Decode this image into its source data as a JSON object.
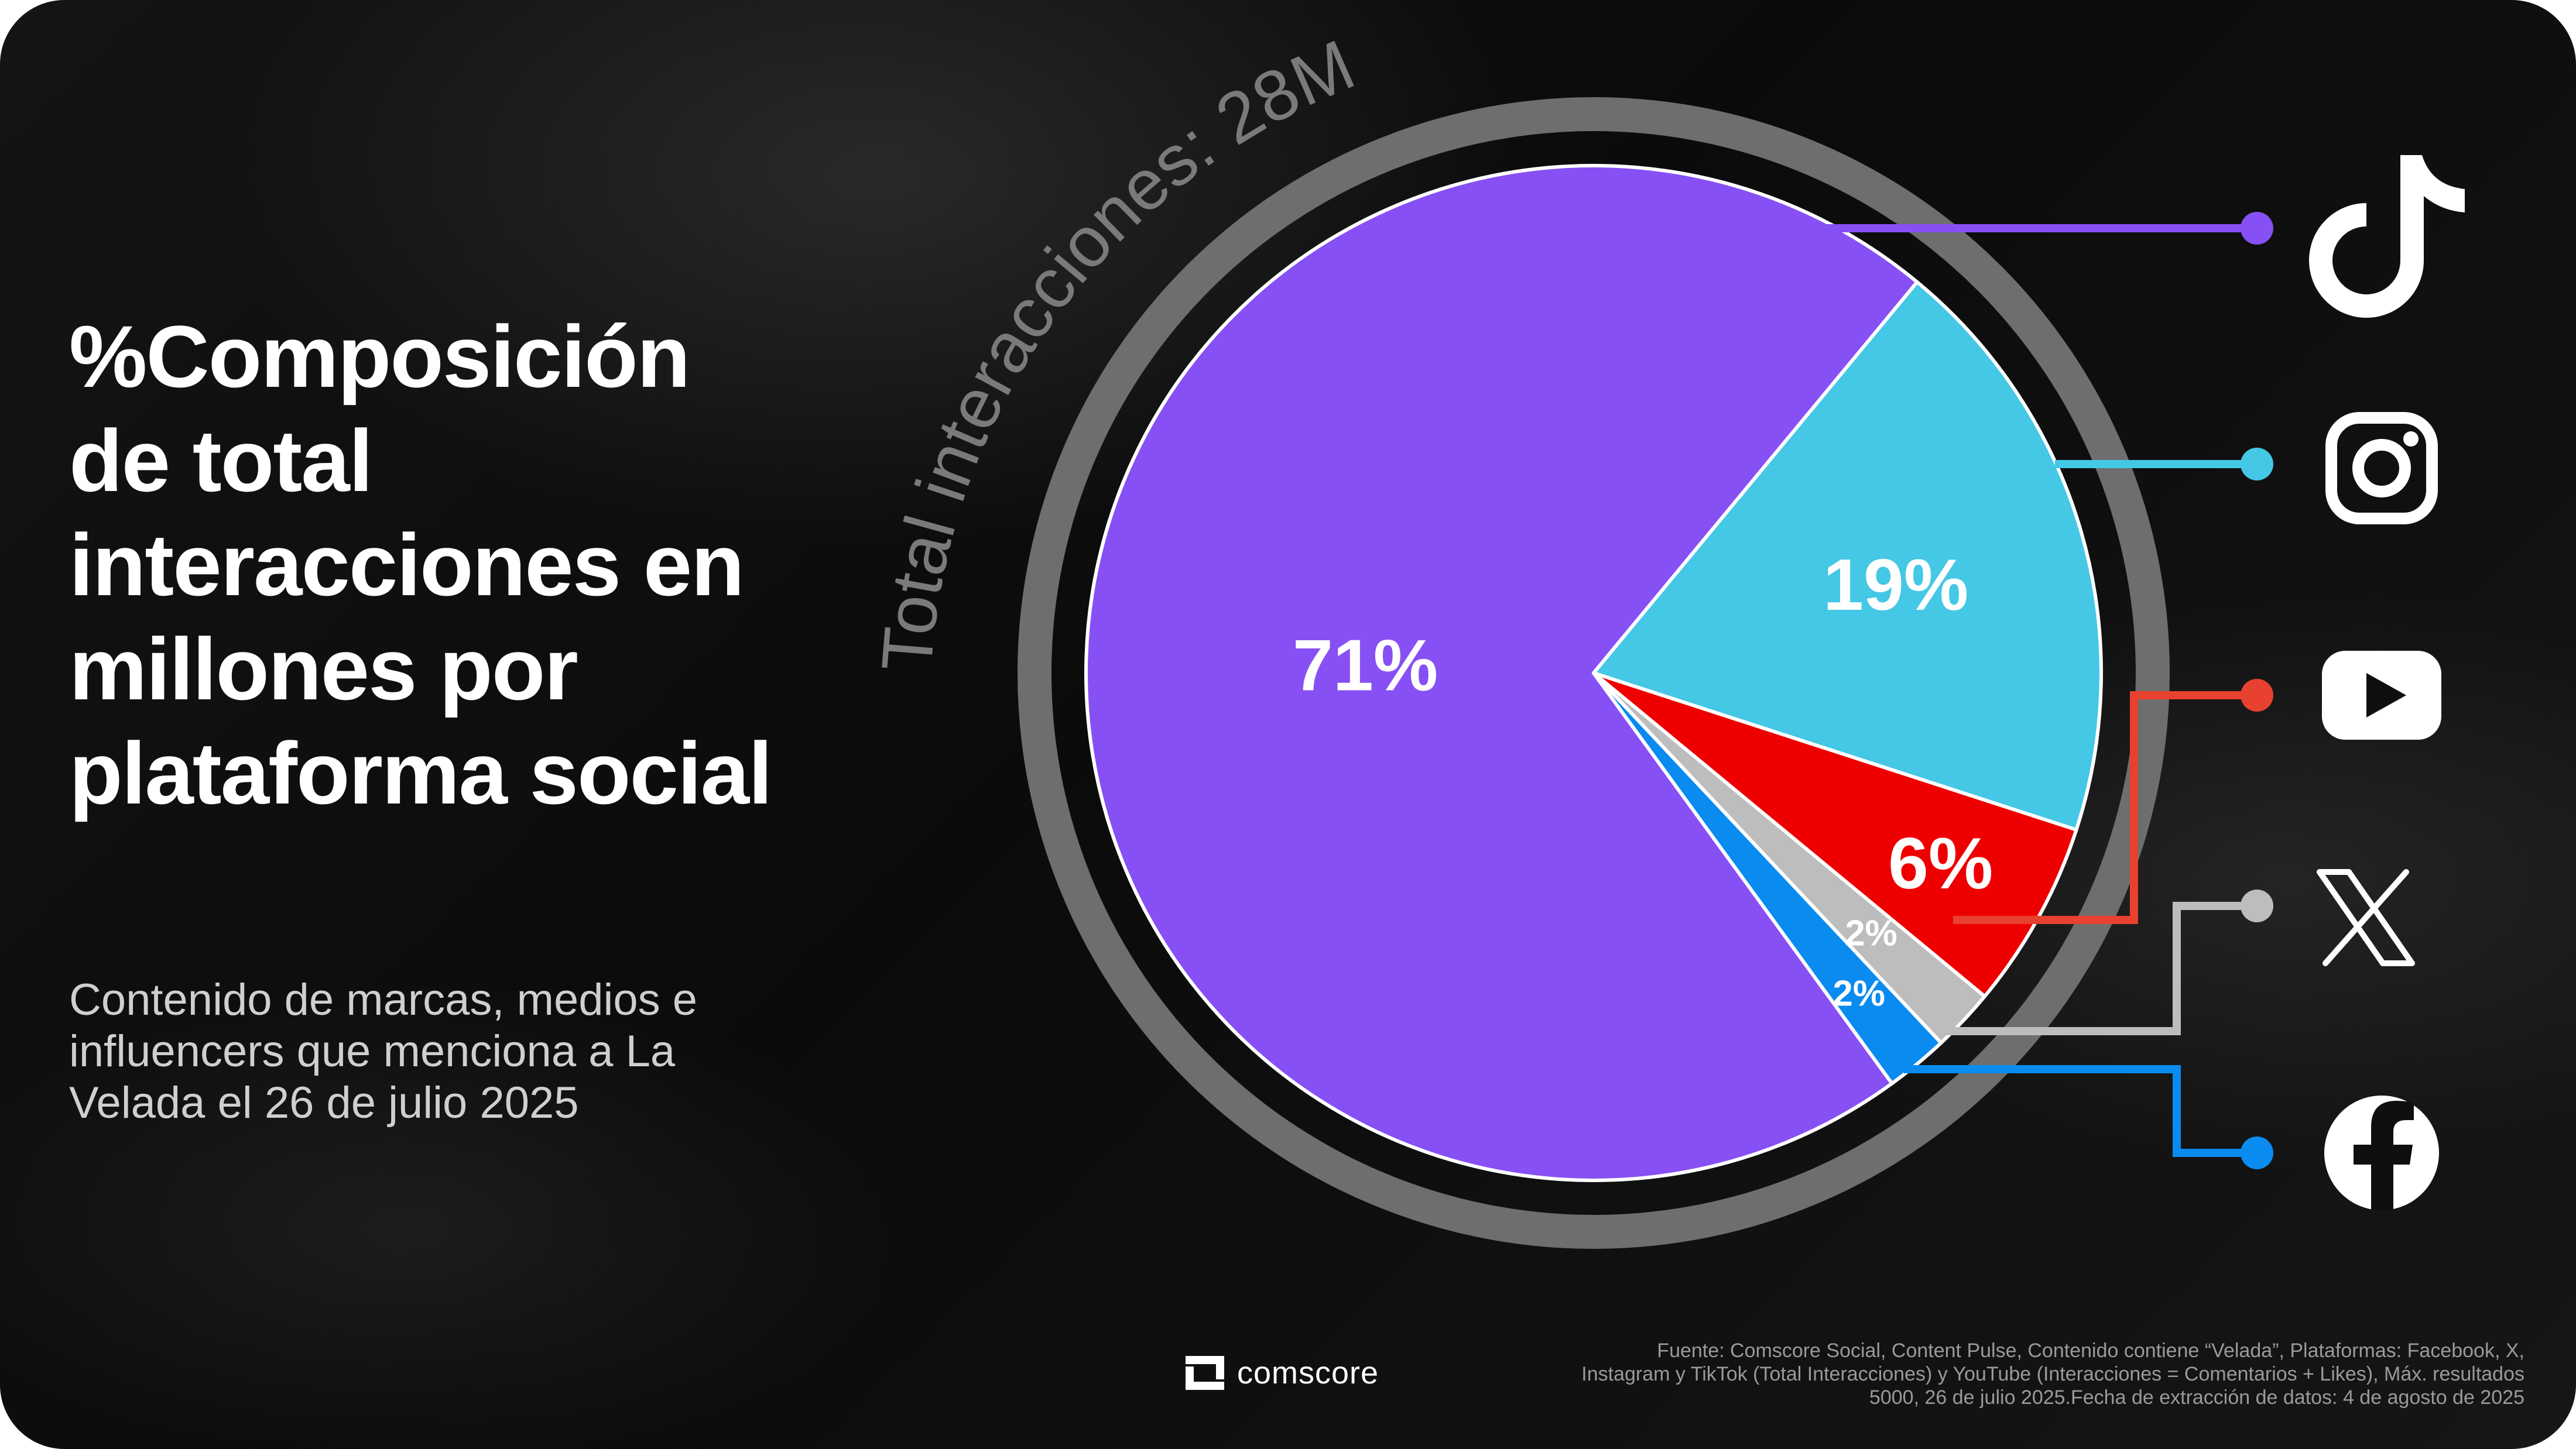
{
  "title": "%Composición de total interacciones en millones por plataforma social",
  "subtitle": "Contenido de marcas, medios e influencers que menciona a La Velada el 26 de julio 2025",
  "total_label": "Total interacciones: 28M",
  "brand": "comscore",
  "source": "Fuente: Comscore Social, Content Pulse, Contenido contiene “Velada”, Plataformas: Facebook, X, Instagram y TikTok (Total Interacciones) y YouTube (Interacciones = Comentarios + Likes), Máx. resultados 5000, 26 de julio 2025.Fecha de extracción de datos: 4 de agosto de 2025",
  "chart_data": {
    "type": "pie",
    "total": "28M",
    "slices": [
      {
        "platform": "TikTok",
        "icon": "tiktok-icon",
        "value": 71,
        "label": "71%",
        "color": "#8750F4"
      },
      {
        "platform": "Instagram",
        "icon": "instagram-icon",
        "value": 19,
        "label": "19%",
        "color": "#45C7E6"
      },
      {
        "platform": "YouTube",
        "icon": "youtube-icon",
        "value": 6,
        "label": "6%",
        "color": "#EE0000",
        "leader_color": "#E8412F"
      },
      {
        "platform": "X",
        "icon": "x-icon",
        "value": 2,
        "label": "2%",
        "color": "#BDBDBD"
      },
      {
        "platform": "Facebook",
        "icon": "facebook-icon",
        "value": 2,
        "label": "2%",
        "color": "#0A8BF0"
      }
    ]
  }
}
